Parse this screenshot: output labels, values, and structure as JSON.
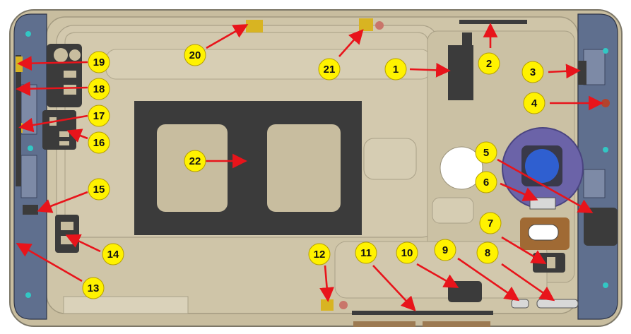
{
  "colors": {
    "housing": "#c8bd9f",
    "housing_light": "#d9d0b8",
    "frame_blue": "#5f6f8e",
    "frame_dark": "#3c4660",
    "dark_pad": "#3b3b3b",
    "callout_fill": "#fff200",
    "arrow": "#e8141b",
    "yellow_tab": "#d8b422",
    "camera_blue": "#2f5fd0",
    "camera_ring": "#6b63a8",
    "copper": "#a06a34"
  },
  "callouts": [
    {
      "label": "1"
    },
    {
      "label": "2"
    },
    {
      "label": "3"
    },
    {
      "label": "4"
    },
    {
      "label": "5"
    },
    {
      "label": "6"
    },
    {
      "label": "7"
    },
    {
      "label": "8"
    },
    {
      "label": "9"
    },
    {
      "label": "10"
    },
    {
      "label": "11"
    },
    {
      "label": "12"
    },
    {
      "label": "13"
    },
    {
      "label": "14"
    },
    {
      "label": "15"
    },
    {
      "label": "16"
    },
    {
      "label": "17"
    },
    {
      "label": "18"
    },
    {
      "label": "19"
    },
    {
      "label": "20"
    },
    {
      "label": "21"
    },
    {
      "label": "22"
    }
  ]
}
